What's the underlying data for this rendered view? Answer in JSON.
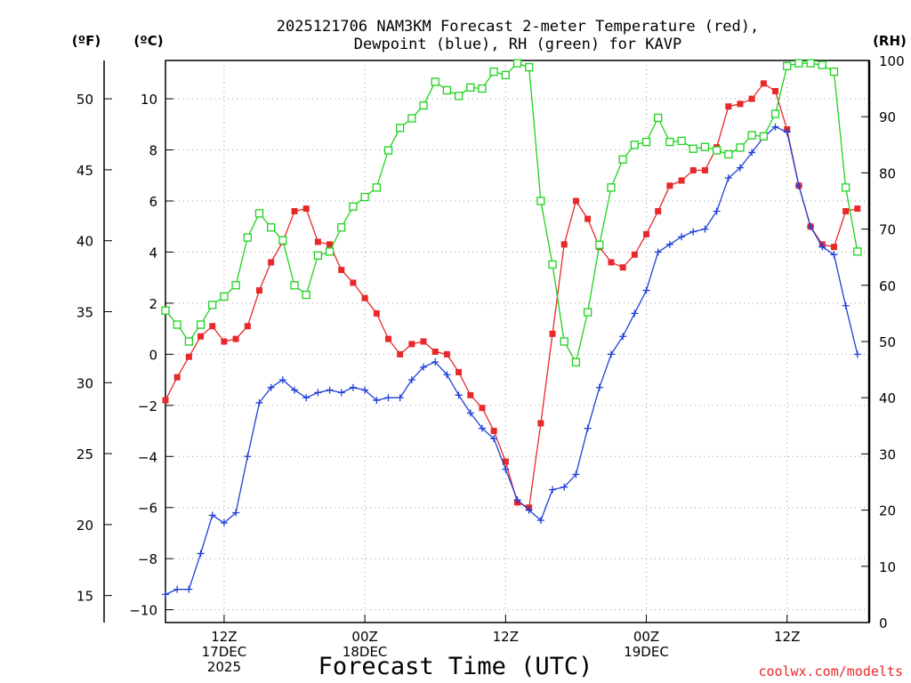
{
  "chart_data": {
    "type": "line",
    "title_line1": "2025121706 NAM3KM Forecast 2-meter Temperature (red),",
    "title_line2": "Dewpoint (blue), RH (green) for KAVP",
    "xlabel": "Forecast Time (UTC)",
    "watermark": "coolwx.com/modelts",
    "units": {
      "fahrenheit": "(ºF)",
      "celsius": "(ºC)",
      "rh": "(RH)"
    },
    "x_hours": [
      7,
      8,
      9,
      10,
      11,
      12,
      13,
      14,
      15,
      16,
      17,
      18,
      19,
      20,
      21,
      22,
      23,
      24,
      25,
      26,
      27,
      28,
      29,
      30,
      31,
      32,
      33,
      34,
      35,
      36,
      37,
      38,
      39,
      40,
      41,
      42,
      43,
      44,
      45,
      46,
      47,
      48,
      49,
      50,
      51,
      52,
      53,
      54,
      55,
      56,
      57,
      58,
      59,
      60,
      61,
      62,
      63,
      64,
      65,
      66
    ],
    "x_range": [
      7,
      67
    ],
    "x_ticks": [
      {
        "hour": 12,
        "label": [
          "12Z",
          "17DEC",
          "2025"
        ]
      },
      {
        "hour": 24,
        "label": [
          "00Z",
          "18DEC"
        ]
      },
      {
        "hour": 36,
        "label": [
          "12Z"
        ]
      },
      {
        "hour": 48,
        "label": [
          "00Z",
          "19DEC"
        ]
      },
      {
        "hour": 60,
        "label": [
          "12Z"
        ]
      }
    ],
    "celsius_range": [
      -10.5,
      11.5
    ],
    "celsius_ticks": [
      -10,
      -8,
      -6,
      -4,
      -2,
      0,
      2,
      4,
      6,
      8,
      10
    ],
    "celsius_tick_labels": [
      "−10",
      "−8",
      "−6",
      "−4",
      "−2",
      "0",
      "2",
      "4",
      "6",
      "8",
      "10"
    ],
    "fahrenheit_ticks": [
      15,
      20,
      25,
      30,
      35,
      40,
      45,
      50
    ],
    "rh_range": [
      0,
      100
    ],
    "rh_ticks": [
      0,
      10,
      20,
      30,
      40,
      50,
      60,
      70,
      80,
      90,
      100
    ],
    "series": [
      {
        "name": "Temperature",
        "units": "°C",
        "color": "#e8282a",
        "marker": "square",
        "values": [
          -1.8,
          -0.9,
          -0.1,
          0.7,
          1.1,
          0.5,
          0.6,
          1.1,
          2.5,
          3.6,
          4.4,
          5.6,
          5.7,
          4.4,
          4.3,
          3.3,
          2.8,
          2.2,
          1.6,
          0.6,
          0.0,
          0.4,
          0.5,
          0.1,
          0.0,
          -0.7,
          -1.6,
          -2.1,
          -3.0,
          -4.2,
          -5.8,
          -6.0,
          -2.7,
          0.8,
          4.3,
          6.0,
          5.3,
          4.2,
          3.6,
          3.4,
          3.9,
          4.7,
          5.6,
          6.6,
          6.8,
          7.2,
          7.2,
          8.1,
          9.7,
          9.8,
          10.0,
          10.6,
          10.3,
          8.8,
          6.6,
          5.0,
          4.3,
          4.2,
          5.6,
          5.7
        ]
      },
      {
        "name": "Dewpoint",
        "units": "°C",
        "color": "#1f3fd8",
        "marker": "plus",
        "values": [
          -9.4,
          -9.2,
          -9.2,
          -7.8,
          -6.3,
          -6.6,
          -6.2,
          -4.0,
          -1.9,
          -1.3,
          -1.0,
          -1.4,
          -1.7,
          -1.5,
          -1.4,
          -1.5,
          -1.3,
          -1.4,
          -1.8,
          -1.7,
          -1.7,
          -1.0,
          -0.5,
          -0.3,
          -0.8,
          -1.6,
          -2.3,
          -2.9,
          -3.3,
          -4.5,
          -5.7,
          -6.1,
          -6.5,
          -5.3,
          -5.2,
          -4.7,
          -2.9,
          -1.3,
          0.0,
          0.7,
          1.6,
          2.5,
          4.0,
          4.3,
          4.6,
          4.8,
          4.9,
          5.6,
          6.9,
          7.3,
          7.9,
          8.5,
          8.9,
          8.7,
          6.6,
          5.0,
          4.2,
          3.9,
          1.9,
          0.0
        ]
      },
      {
        "name": "RH",
        "units": "%",
        "color": "#1ed21e",
        "marker": "open-square",
        "values": [
          55.5,
          53.0,
          50.0,
          53.0,
          56.5,
          58.0,
          60.0,
          68.5,
          72.8,
          70.3,
          68.0,
          60.0,
          58.3,
          65.3,
          66.0,
          70.3,
          74.0,
          75.7,
          77.4,
          84.0,
          88.0,
          89.7,
          92.0,
          96.2,
          94.7,
          93.7,
          95.2,
          95.0,
          98.0,
          97.4,
          99.5,
          98.8,
          75.0,
          63.7,
          50.0,
          46.3,
          55.2,
          67.2,
          77.4,
          82.4,
          85.0,
          85.5,
          89.8,
          85.5,
          85.7,
          84.3,
          84.6,
          84.0,
          83.3,
          84.5,
          86.7,
          86.5,
          90.5,
          99.0,
          99.5,
          99.5,
          99.2,
          98.0,
          77.4,
          66.0
        ]
      }
    ]
  }
}
